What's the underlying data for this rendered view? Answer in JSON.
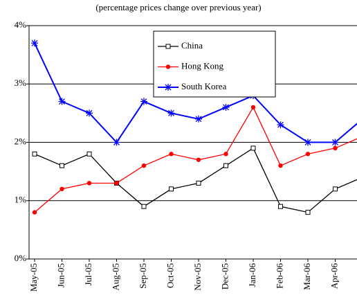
{
  "chart_data": {
    "type": "line",
    "subtitle": "(percentage prices change over previous year)",
    "categories": [
      "May-05",
      "Jun-05",
      "Jul-05",
      "Aug-05",
      "Sep-05",
      "Oct-05",
      "Nov-05",
      "Dec-05",
      "Jan-06",
      "Feb-06",
      "Mar-06",
      "Apr-06",
      null
    ],
    "series": [
      {
        "name": "China",
        "color": "#000000",
        "marker": "square",
        "values": [
          1.8,
          1.6,
          1.8,
          1.3,
          0.9,
          1.2,
          1.3,
          1.6,
          1.9,
          0.9,
          0.8,
          1.2,
          1.4
        ]
      },
      {
        "name": "Hong Kong",
        "color": "#ff0000",
        "marker": "circle",
        "values": [
          0.8,
          1.2,
          1.3,
          1.3,
          1.6,
          1.8,
          1.7,
          1.8,
          2.6,
          1.6,
          1.8,
          1.9,
          2.1
        ]
      },
      {
        "name": "South Korea",
        "color": "#0000ff",
        "marker": "asterisk",
        "values": [
          3.7,
          2.7,
          2.5,
          2.0,
          2.7,
          2.5,
          2.4,
          2.6,
          2.8,
          2.3,
          2.0,
          2.0,
          2.4
        ]
      }
    ],
    "ylim": [
      0,
      4
    ],
    "yticks": [
      {
        "value": 0,
        "label": "0%"
      },
      {
        "value": 1,
        "label": "1%"
      },
      {
        "value": 2,
        "label": "2%"
      },
      {
        "value": 3,
        "label": "3%"
      },
      {
        "value": 4,
        "label": "4%"
      }
    ],
    "grid": true,
    "legend": "top-center"
  }
}
